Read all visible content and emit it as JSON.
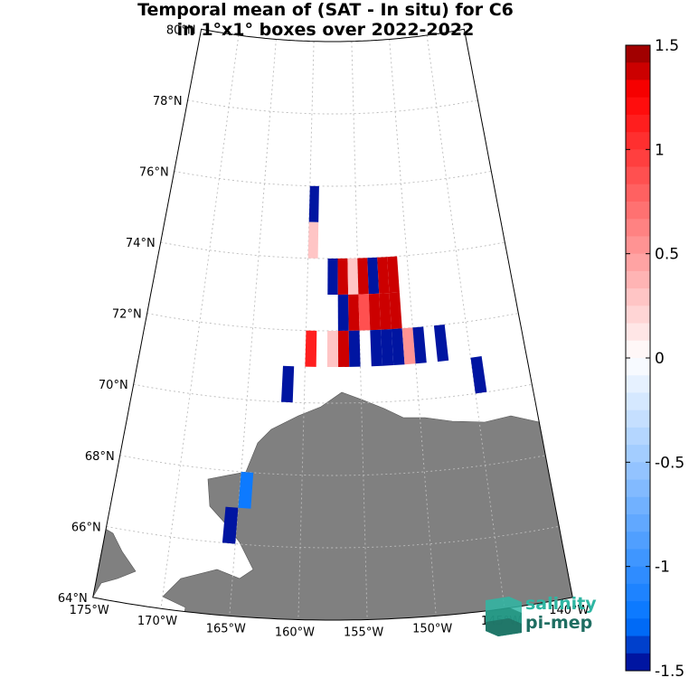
{
  "title": {
    "line1": "Temporal mean of (SAT - In situ) for C6",
    "line2": "in 1°x1° boxes over 2022-2022"
  },
  "map": {
    "projection": "polar-stereographic sector",
    "lat_range": [
      64,
      80
    ],
    "lon_range": [
      -175,
      -140
    ],
    "latitude_labels": [
      "80°N",
      "78°N",
      "76°N",
      "74°N",
      "72°N",
      "70°N",
      "68°N",
      "66°N",
      "64°N"
    ],
    "longitude_labels": [
      "175°W",
      "170°W",
      "165°W",
      "160°W",
      "155°W",
      "150°W",
      "145°W",
      "140°W"
    ],
    "land_color": "#808080",
    "grid": "dotted"
  },
  "colorbar": {
    "min": -1.5,
    "max": 1.5,
    "steps": 36,
    "tick_labels": [
      "1.5",
      "1",
      "0.5",
      "0",
      "-0.5",
      "-1",
      "-1.5"
    ],
    "colormap": "blue-white-red"
  },
  "chart_data": {
    "type": "heatmap",
    "variable": "SAT - In situ",
    "cells": [
      {
        "lat": 75,
        "lon": -160,
        "value": -1.5
      },
      {
        "lat": 74,
        "lon": -160,
        "value": 0.3
      },
      {
        "lat": 73,
        "lon": -158,
        "value": -1.5
      },
      {
        "lat": 73,
        "lon": -157,
        "value": 1.4
      },
      {
        "lat": 73,
        "lon": -156,
        "value": 0.25
      },
      {
        "lat": 73,
        "lon": -155,
        "value": 1.4
      },
      {
        "lat": 73,
        "lon": -154,
        "value": -1.5
      },
      {
        "lat": 73,
        "lon": -153,
        "value": 1.4
      },
      {
        "lat": 73,
        "lon": -152,
        "value": 1.4
      },
      {
        "lat": 72,
        "lon": -157,
        "value": -1.5
      },
      {
        "lat": 72,
        "lon": -156,
        "value": 1.4
      },
      {
        "lat": 72,
        "lon": -155,
        "value": 0.9
      },
      {
        "lat": 72,
        "lon": -154,
        "value": 1.4
      },
      {
        "lat": 72,
        "lon": -153,
        "value": 1.4
      },
      {
        "lat": 72,
        "lon": -152,
        "value": 1.4
      },
      {
        "lat": 71,
        "lon": -160,
        "value": 1.15
      },
      {
        "lat": 71,
        "lon": -158,
        "value": 0.25
      },
      {
        "lat": 71,
        "lon": -157,
        "value": 1.4
      },
      {
        "lat": 71,
        "lon": -156,
        "value": -1.5
      },
      {
        "lat": 71,
        "lon": -154,
        "value": -1.5
      },
      {
        "lat": 71,
        "lon": -153,
        "value": -1.5
      },
      {
        "lat": 71,
        "lon": -152,
        "value": -1.5
      },
      {
        "lat": 71,
        "lon": -151,
        "value": 0.55
      },
      {
        "lat": 71,
        "lon": -150,
        "value": -1.5
      },
      {
        "lat": 71,
        "lon": -148,
        "value": -1.5
      },
      {
        "lat": 70,
        "lon": -145,
        "value": -1.5
      },
      {
        "lat": 70,
        "lon": -162,
        "value": -1.5
      },
      {
        "lat": 67,
        "lon": -165,
        "value": -1.2
      },
      {
        "lat": 66,
        "lon": -166,
        "value": -1.5
      }
    ]
  },
  "logo": {
    "line1": "salinity",
    "line2": "pi-mep"
  }
}
